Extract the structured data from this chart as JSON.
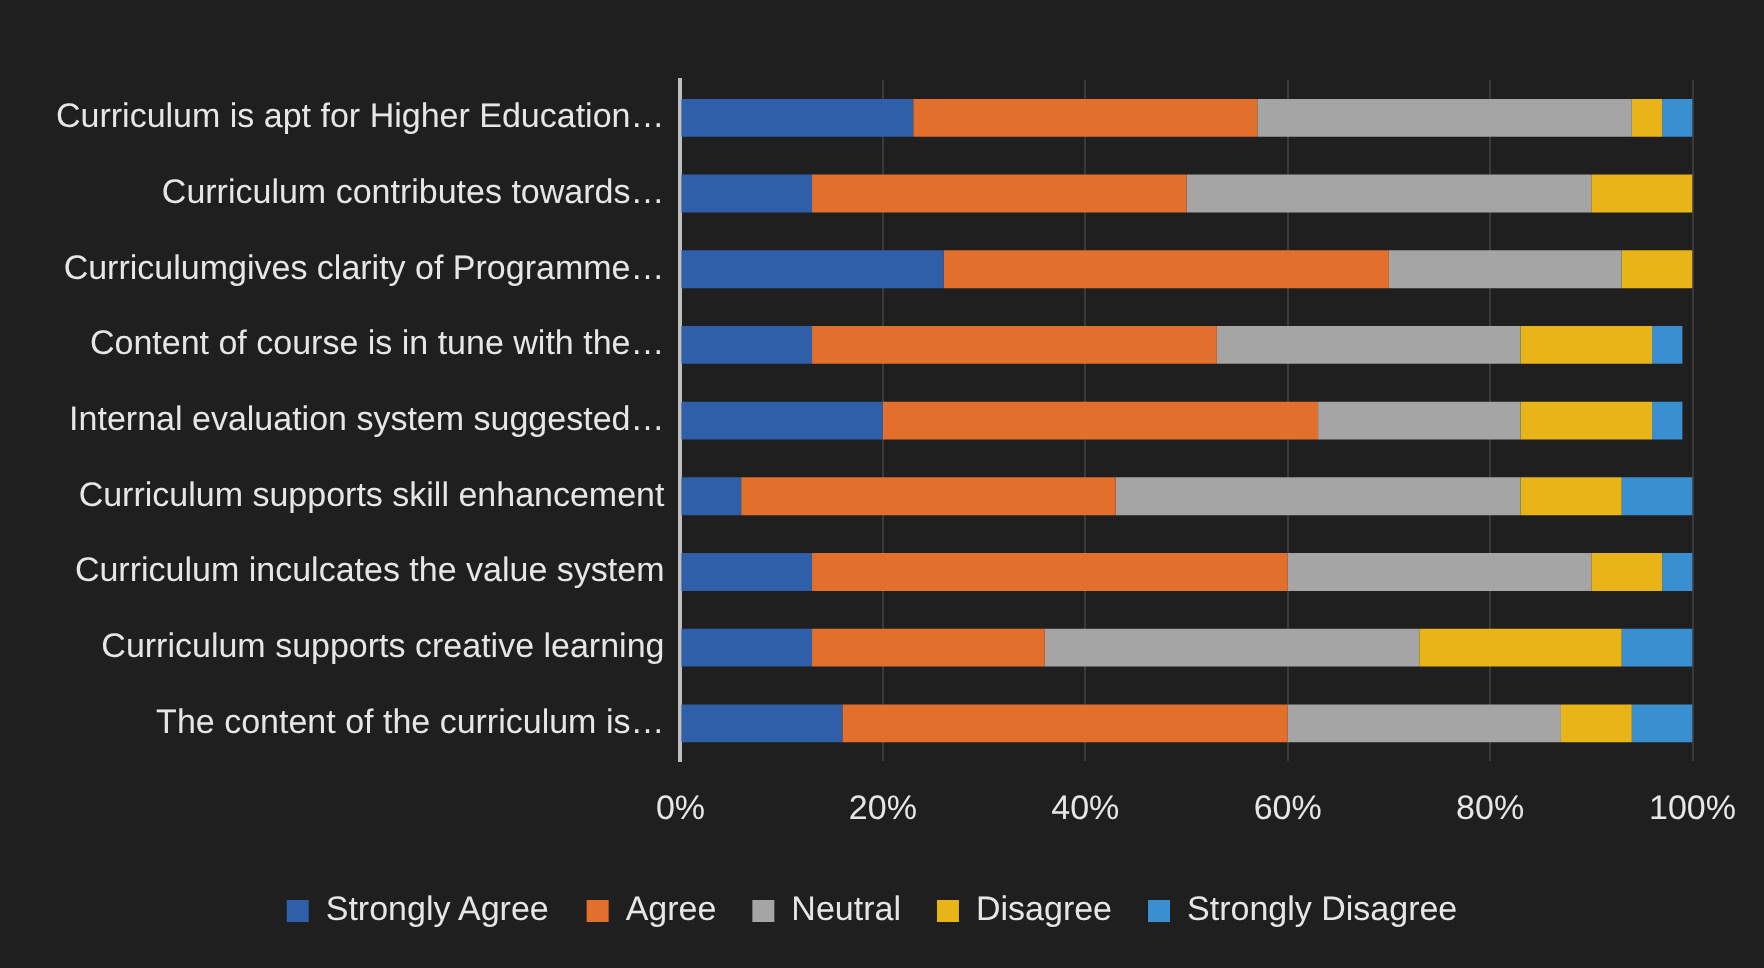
{
  "chart_data": {
    "type": "bar",
    "orientation": "horizontal",
    "stacked": true,
    "categories": [
      "Curriculum is apt for Higher Education…",
      "Curriculum contributes towards…",
      "Curriculumgives clarity of Programme…",
      "Content of course is in tune with the…",
      "Internal evaluation system suggested…",
      "Curriculum supports skill enhancement",
      "Curriculum inculcates the value system",
      "Curriculum supports creative learning",
      "The content of the curriculum is…"
    ],
    "series": [
      {
        "name": "Strongly Agree",
        "color": "#2e5fa8",
        "values": [
          23,
          13,
          26,
          13,
          20,
          6,
          13,
          13,
          16
        ]
      },
      {
        "name": "Agree",
        "color": "#e36f2c",
        "values": [
          34,
          37,
          44,
          40,
          43,
          37,
          47,
          23,
          44
        ]
      },
      {
        "name": "Neutral",
        "color": "#a5a5a5",
        "values": [
          37,
          40,
          23,
          30,
          20,
          40,
          30,
          37,
          27
        ]
      },
      {
        "name": "Disagree",
        "color": "#e8b418",
        "values": [
          3,
          10,
          7,
          13,
          13,
          10,
          7,
          20,
          7
        ]
      },
      {
        "name": "Strongly Disagree",
        "color": "#3a8fd0",
        "values": [
          3,
          0,
          0,
          3,
          3,
          7,
          3,
          7,
          6
        ]
      }
    ],
    "xlim": [
      0,
      100
    ],
    "xticks": [
      {
        "value": 0,
        "label": "0%"
      },
      {
        "value": 20,
        "label": "20%"
      },
      {
        "value": 40,
        "label": "40%"
      },
      {
        "value": 60,
        "label": "60%"
      },
      {
        "value": 80,
        "label": "80%"
      },
      {
        "value": 100,
        "label": "100%"
      }
    ],
    "grid": "x",
    "legend": "bottom"
  }
}
